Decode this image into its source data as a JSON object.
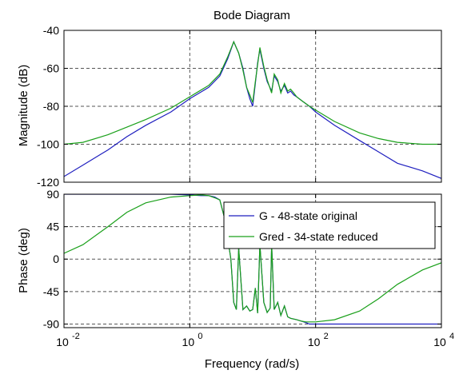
{
  "chart_data": {
    "type": "line",
    "title": "Bode Diagram",
    "xlabel": "Frequency  (rad/s)",
    "x_scale": "log",
    "xlim": [
      0.01,
      10000
    ],
    "x_ticks": [
      {
        "base": "10",
        "exp": "-2"
      },
      {
        "base": "10",
        "exp": "0"
      },
      {
        "base": "10",
        "exp": "2"
      },
      {
        "base": "10",
        "exp": "4"
      }
    ],
    "grid": "dashed at major ticks",
    "legend_placement": "inside phase plot, top-right",
    "legend": [
      "G - 48-state original",
      "Gred - 34-state reduced"
    ],
    "series_colors": [
      "#1f1fbf",
      "#1aa01a"
    ],
    "subplots": [
      {
        "name": "magnitude",
        "ylabel": "Magnitude (dB)",
        "ylim": [
          -120,
          -40
        ],
        "yticks": [
          -120,
          -100,
          -80,
          -60,
          -40
        ],
        "series": [
          {
            "name": "G - 48-state original",
            "x": [
              0.01,
              0.02,
              0.05,
              0.1,
              0.2,
              0.5,
              1,
              2,
              3,
              4,
              5,
              6,
              7,
              8,
              9,
              10,
              11,
              12,
              13,
              15,
              17,
              20,
              22,
              25,
              28,
              32,
              36,
              40,
              45,
              50,
              60,
              80,
              100,
              200,
              500,
              1000,
              2000,
              5000,
              10000
            ],
            "y": [
              -117,
              -111,
              -103,
              -96,
              -90,
              -83,
              -76,
              -70,
              -64,
              -55,
              -46,
              -52,
              -60,
              -70,
              -76,
              -80,
              -68,
              -57,
              -50,
              -60,
              -67,
              -72,
              -64,
              -67,
              -72,
              -69,
              -73,
              -72,
              -74,
              -75,
              -77,
              -80,
              -83,
              -90,
              -98,
              -104,
              -110,
              -114,
              -118
            ]
          },
          {
            "name": "Gred - 34-state reduced",
            "x": [
              0.01,
              0.02,
              0.05,
              0.1,
              0.2,
              0.5,
              1,
              2,
              3,
              4,
              5,
              6,
              7,
              8,
              9,
              10,
              11,
              12,
              13,
              15,
              17,
              20,
              22,
              25,
              28,
              32,
              36,
              40,
              45,
              50,
              60,
              80,
              100,
              200,
              500,
              1000,
              2000,
              5000,
              10000
            ],
            "y": [
              -100,
              -99,
              -95,
              -91,
              -87,
              -81,
              -75,
              -69,
              -63,
              -54,
              -46,
              -52,
              -61,
              -70,
              -74,
              -78,
              -67,
              -58,
              -49,
              -59,
              -66,
              -73,
              -63,
              -66,
              -73,
              -68,
              -72,
              -71,
              -73,
              -75,
              -77,
              -80,
              -82,
              -88,
              -94,
              -97,
              -99,
              -100,
              -100
            ]
          }
        ]
      },
      {
        "name": "phase",
        "ylabel": "Phase (deg)",
        "ylim": [
          -95,
          90
        ],
        "yticks": [
          -90,
          -45,
          0,
          45,
          90
        ],
        "series": [
          {
            "name": "G - 48-state original",
            "x": [
              0.01,
              0.1,
              0.5,
              1,
              1.5,
              2,
              2.5,
              3,
              3.5,
              4,
              4.5,
              5,
              5.5,
              6,
              7,
              8,
              9,
              10,
              11,
              12,
              13,
              15,
              17,
              19,
              20,
              22,
              25,
              28,
              32,
              36,
              40,
              50,
              60,
              70,
              80,
              100,
              1000,
              10000
            ],
            "y": [
              90,
              90,
              90,
              89,
              88,
              88,
              86,
              82,
              60,
              30,
              0,
              -60,
              -70,
              15,
              -70,
              -65,
              -72,
              -70,
              -40,
              -75,
              20,
              -60,
              -74,
              -68,
              20,
              -70,
              -60,
              -78,
              -65,
              -80,
              -82,
              -84,
              -86,
              -88,
              -90,
              -90,
              -90,
              -90
            ]
          },
          {
            "name": "Gred - 34-state reduced",
            "x": [
              0.01,
              0.02,
              0.05,
              0.1,
              0.2,
              0.5,
              1,
              1.5,
              2,
              2.5,
              3,
              3.5,
              4,
              4.5,
              5,
              5.5,
              6,
              7,
              8,
              9,
              10,
              11,
              12,
              13,
              15,
              17,
              19,
              20,
              22,
              25,
              28,
              32,
              36,
              40,
              50,
              60,
              70,
              80,
              100,
              200,
              500,
              1000,
              2000,
              5000,
              10000
            ],
            "y": [
              8,
              20,
              45,
              65,
              78,
              86,
              88,
              89,
              88,
              85,
              82,
              60,
              30,
              0,
              -60,
              -70,
              15,
              -70,
              -65,
              -72,
              -70,
              -40,
              -75,
              20,
              -60,
              -74,
              -68,
              20,
              -70,
              -60,
              -78,
              -65,
              -80,
              -82,
              -84,
              -86,
              -87,
              -87,
              -87,
              -84,
              -72,
              -55,
              -35,
              -15,
              -5
            ]
          }
        ]
      }
    ]
  }
}
